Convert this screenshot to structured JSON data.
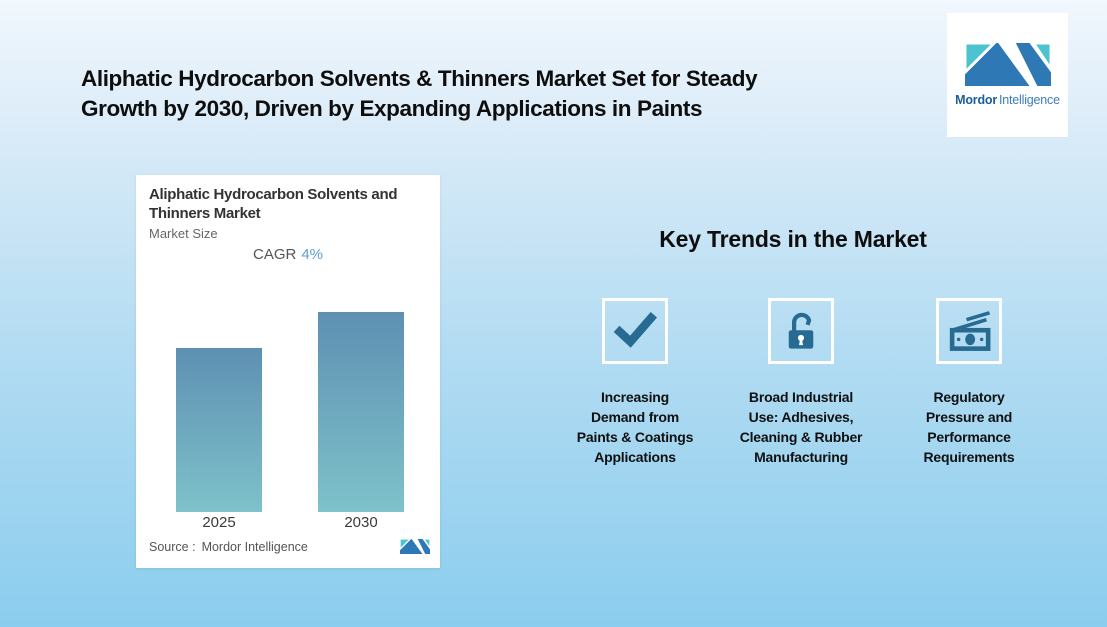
{
  "page": {
    "title": "Aliphatic Hydrocarbon Solvents & Thinners Market Set for Steady\nGrowth by 2030, Driven by Expanding Applications in Paints"
  },
  "brand": {
    "name_bold": "Mordor",
    "name_regular": "Intelligence",
    "logo_dark_blue": "#2e78b5",
    "logo_teal": "#4cc3cf"
  },
  "chart_card": {
    "title": "Aliphatic Hydrocarbon Solvents and\nThinners Market",
    "subtitle": "Market Size",
    "cagr_label": "CAGR",
    "cagr_value": "4%",
    "source_label": "Source :",
    "source_value": "Mordor Intelligence"
  },
  "chart_data": {
    "type": "bar",
    "title": "Aliphatic Hydrocarbon Solvents and Thinners Market",
    "subtitle": "Market Size",
    "categories": [
      "2025",
      "2030"
    ],
    "values": [
      0.82,
      1.0
    ],
    "values_note": "No numeric axis shown; relative bar heights consistent with 4% CAGR from 2025 to 2030",
    "annotations": [
      {
        "label": "CAGR",
        "value": "4%"
      }
    ],
    "xlabel": "",
    "ylabel": "",
    "grid": false,
    "legend": false,
    "bar_gradient_top": "#5e90b2",
    "bar_gradient_bottom": "#7ec2ca",
    "source": "Source : Mordor Intelligence"
  },
  "trends": {
    "heading": "Key Trends in the Market",
    "items": [
      {
        "icon": "checkmark-icon",
        "label": "Increasing\nDemand from\nPaints & Coatings\nApplications"
      },
      {
        "icon": "open-padlock-icon",
        "label": "Broad Industrial\nUse: Adhesives,\nCleaning & Rubber\nManufacturing"
      },
      {
        "icon": "money-banknotes-icon",
        "label": "Regulatory\nPressure and\nPerformance\nRequirements"
      }
    ]
  },
  "colors": {
    "background_gradient_top": "#f1f7fd",
    "background_gradient_bottom": "#8bcdee",
    "icon_color": "#276b93",
    "cagr_value_color": "#5f9fd0",
    "heading_text": "#0e0e0e"
  }
}
